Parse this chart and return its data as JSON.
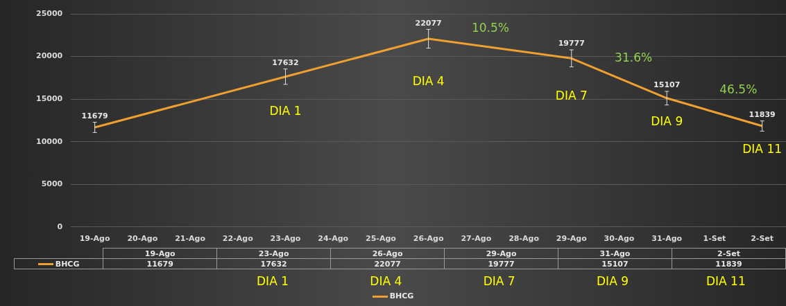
{
  "chart_data": {
    "type": "line",
    "categories": [
      "19-Ago",
      "20-Ago",
      "21-Ago",
      "22-Ago",
      "23-Ago",
      "24-Ago",
      "25-Ago",
      "26-Ago",
      "27-Ago",
      "28-Ago",
      "29-Ago",
      "30-Ago",
      "31-Ago",
      "1-Set",
      "2-Set"
    ],
    "series": [
      {
        "name": "BHCG",
        "color": "#f0a030",
        "values": [
          11679,
          null,
          null,
          null,
          17632,
          null,
          null,
          22077,
          null,
          null,
          19777,
          null,
          15107,
          null,
          11839
        ],
        "errors": [
          600,
          null,
          null,
          null,
          900,
          null,
          null,
          1100,
          null,
          null,
          1000,
          null,
          800,
          null,
          600
        ],
        "value_labels": [
          "11679",
          null,
          null,
          null,
          "17632",
          null,
          null,
          "22077",
          null,
          null,
          "19777",
          null,
          "15107",
          null,
          "11839"
        ]
      }
    ],
    "ylim": [
      0,
      25000
    ],
    "yticks": [
      0,
      5000,
      10000,
      15000,
      20000,
      25000
    ],
    "grid": "y",
    "legend": "bottom",
    "marker": "none",
    "annotations": [
      "DIA 1",
      "DIA 4",
      "DIA 7",
      "DIA 9",
      "DIA 11",
      "10.5%",
      "31.6%",
      "46.5%",
      "11679",
      "17632",
      "22077",
      "19777",
      "15107",
      "11839",
      "DIA 1",
      "DIA 4",
      "DIA 7",
      "DIA 9",
      "DIA 11"
    ]
  }
}
